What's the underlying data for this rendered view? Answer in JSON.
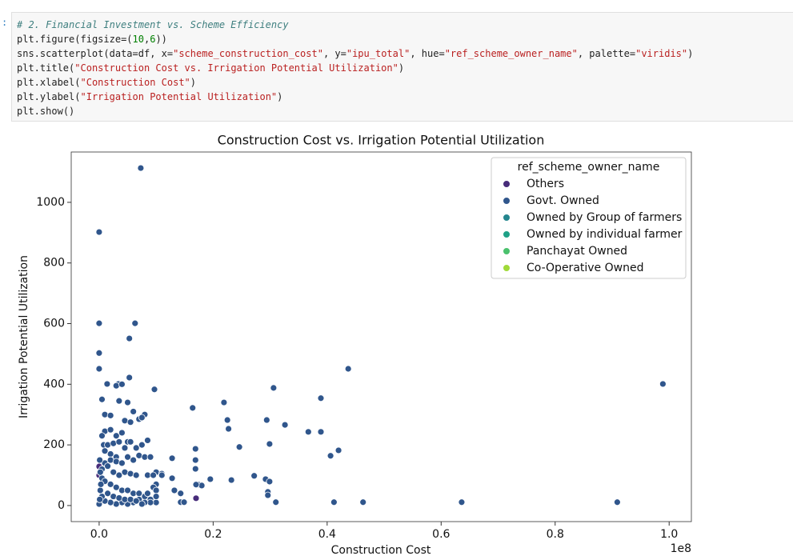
{
  "prompt": ":",
  "code": [
    "# 2. Financial Investment vs. Scheme Efficiency",
    "plt.figure(figsize=(10,6))",
    "sns.scatterplot(data=df, x=\"scheme_construction_cost\", y=\"ipu_total\", hue=\"ref_scheme_owner_name\", palette=\"viridis\")",
    "plt.title(\"Construction Cost vs. Irrigation Potential Utilization\")",
    "plt.xlabel(\"Construction Cost\")",
    "plt.ylabel(\"Irrigation Potential Utilization\")",
    "plt.show()"
  ],
  "chart_data": {
    "type": "scatter",
    "title": "Construction Cost vs. Irrigation Potential Utilization",
    "x_label": "Construction Cost",
    "y_label": "Irrigation Potential Utilization",
    "x_offset_label": "1e8",
    "legend_title": "ref_scheme_owner_name",
    "legend": "upper right",
    "xlim": [
      -0.049,
      1.039
    ],
    "ylim": [
      -53,
      1166
    ],
    "xticks": [
      {
        "value": 0,
        "label": "0.0"
      },
      0.2,
      0.4,
      0.6,
      0.8,
      {
        "value": 1,
        "label": "1.0"
      }
    ],
    "yticks": [
      0,
      200,
      400,
      600,
      800,
      1000
    ],
    "series": [
      {
        "name": "Others",
        "color": "#472c7a",
        "x": [
          0,
          0,
          0.17
        ],
        "values": [
          129,
          100,
          24
        ]
      },
      {
        "name": "Govt. Owned",
        "color": "#30568c",
        "x": [
          0.073,
          0,
          0,
          0.063,
          0.053,
          0,
          0,
          0.437,
          0.053,
          0.097,
          0.306,
          0.389,
          0.219,
          0.989,
          0.014,
          0.034,
          0.164,
          0.225,
          0.294,
          0.326,
          0.227,
          0.367,
          0.389,
          0.42,
          0.406,
          0.246,
          0.299,
          0.169,
          0.169,
          0.169,
          0.128,
          0.272,
          0.292,
          0.195,
          0.232,
          0.299,
          0.296,
          0.296,
          0.31,
          0.412,
          0.463,
          0.636,
          0.909,
          0.174,
          0.18,
          0.17,
          0.143,
          0.149,
          0.128,
          0.132,
          0.143,
          0.005,
          0.01,
          0.02,
          0.03,
          0.04,
          0.035,
          0.05,
          0.045,
          0.055,
          0.06,
          0.07,
          0.08,
          0.075,
          0.01,
          0.02,
          0.03,
          0.04,
          0.05,
          0.055,
          0.065,
          0.075,
          0.085,
          0.005,
          0.008,
          0.015,
          0.025,
          0.035,
          0.045,
          0.01,
          0.02,
          0.03,
          0.05,
          0.06,
          0.07,
          0.08,
          0.09,
          0.01,
          0.02,
          0.03,
          0.04,
          0.005,
          0.015,
          0.025,
          0.035,
          0.045,
          0.055,
          0.065,
          0.085,
          0.1,
          0.11,
          0.095,
          0.1,
          0.095,
          0.1,
          0.005,
          0.01,
          0.02,
          0.03,
          0.04,
          0.05,
          0.06,
          0.07,
          0.08,
          0.09,
          0.1,
          0.09,
          0.08,
          0.07,
          0.06,
          0.05,
          0.04,
          0.03,
          0.02,
          0.01,
          0,
          0.005,
          0.002,
          0.003,
          0.001,
          0.002,
          0.001,
          0.015,
          0.025,
          0.035,
          0.045,
          0.055,
          0.065,
          0.075,
          0.085,
          0.1,
          0.11
        ],
        "values": [
          1113,
          902,
          601,
          601,
          551,
          503,
          451,
          451,
          422,
          383,
          388,
          354,
          340,
          401,
          401,
          401,
          322,
          282,
          282,
          266,
          253,
          243,
          243,
          182,
          164,
          193,
          203,
          187,
          150,
          121,
          156,
          98,
          87,
          87,
          84,
          79,
          45,
          34,
          11,
          11,
          11,
          11,
          11,
          69,
          66,
          69,
          11,
          11,
          90,
          50,
          40,
          350,
          300,
          297,
          395,
          400,
          345,
          340,
          280,
          275,
          310,
          285,
          300,
          290,
          245,
          250,
          230,
          240,
          210,
          210,
          190,
          200,
          215,
          230,
          200,
          200,
          205,
          210,
          190,
          180,
          170,
          160,
          160,
          150,
          165,
          160,
          160,
          140,
          150,
          145,
          140,
          120,
          130,
          110,
          100,
          110,
          105,
          100,
          100,
          110,
          105,
          100,
          70,
          60,
          50,
          90,
          80,
          70,
          60,
          50,
          50,
          40,
          40,
          30,
          20,
          10,
          10,
          10,
          20,
          10,
          5,
          10,
          5,
          10,
          15,
          5,
          30,
          50,
          70,
          150,
          110,
          20,
          40,
          30,
          25,
          20,
          20,
          15,
          5,
          40,
          30,
          100
        ]
      },
      {
        "name": "Owned by Group of farmers",
        "color": "#24868e",
        "x": [],
        "values": []
      },
      {
        "name": "Owned by individual farmer",
        "color": "#1fa187",
        "x": [],
        "values": []
      },
      {
        "name": "Panchayat Owned",
        "color": "#4ac16d",
        "x": [],
        "values": []
      },
      {
        "name": "Co-Operative Owned",
        "color": "#a0da39",
        "x": [],
        "values": []
      }
    ]
  }
}
